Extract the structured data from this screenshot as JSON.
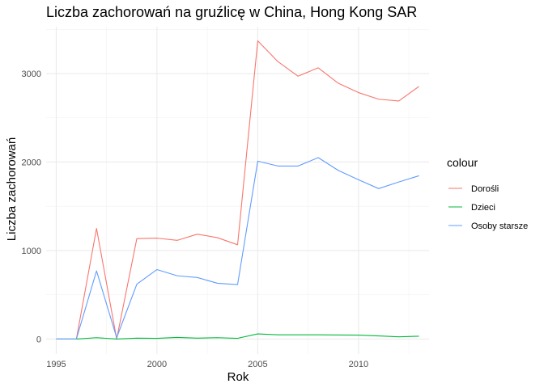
{
  "chart_data": {
    "type": "line",
    "title": "Liczba zachorowań na gruźlicę w China, Hong Kong SAR",
    "xlabel": "Rok",
    "ylabel": "Liczba zachorowań",
    "x": [
      1995,
      1996,
      1997,
      1998,
      1999,
      2000,
      2001,
      2002,
      2003,
      2004,
      2005,
      2006,
      2007,
      2008,
      2009,
      2010,
      2011,
      2012,
      2013
    ],
    "xlim": [
      1994.5,
      2013.5
    ],
    "ylim": [
      -170,
      3530
    ],
    "xticks": [
      1995,
      2000,
      2005,
      2010
    ],
    "yticks": [
      0,
      1000,
      2000,
      3000
    ],
    "grid": true,
    "legend": {
      "title": "colour",
      "position": "right"
    },
    "series": [
      {
        "name": "Dorośli",
        "color": "#F8766D",
        "values": [
          0,
          0,
          1250,
          0,
          1135,
          1140,
          1115,
          1185,
          1145,
          1065,
          3370,
          3135,
          2970,
          3065,
          2890,
          2785,
          2710,
          2690,
          2855
        ]
      },
      {
        "name": "Dzieci",
        "color": "#00BA38",
        "values": [
          0,
          0,
          15,
          0,
          10,
          8,
          18,
          10,
          15,
          8,
          58,
          48,
          48,
          48,
          45,
          44,
          35,
          25,
          32
        ]
      },
      {
        "name": "Osoby starsze",
        "color": "#619CFF",
        "values": [
          0,
          0,
          770,
          15,
          620,
          785,
          715,
          695,
          630,
          615,
          2010,
          1955,
          1955,
          2050,
          1905,
          1800,
          1700,
          1775,
          1845
        ]
      }
    ]
  }
}
